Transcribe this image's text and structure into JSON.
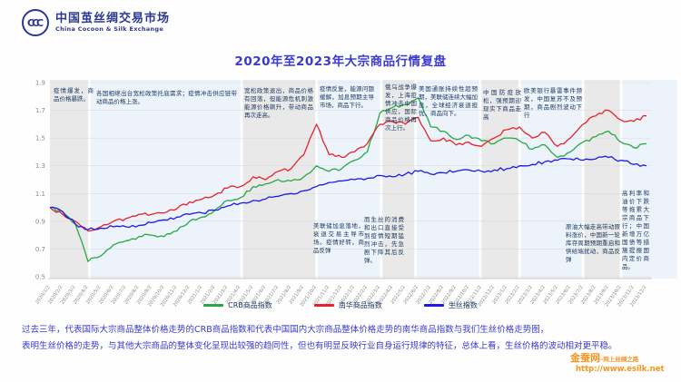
{
  "header": {
    "logo_mark": "CCC",
    "logo_title": "中国茧丝绸交易市场",
    "logo_subtitle": "China  Cocoon & Silk  Exchange"
  },
  "title": "2020年至2023年大宗商品行情复盘",
  "chart_data": {
    "type": "line",
    "title": "2020年至2023年大宗商品行情复盘",
    "ylim": [
      0.5,
      1.9
    ],
    "y_ticks": [
      1.9,
      1.7,
      1.5,
      1.3,
      1.1,
      0.9,
      0.7,
      0.5
    ],
    "grid": true,
    "legend_position": "bottom",
    "x_labels": [
      "2020/1/2",
      "2020/2/2",
      "2020/3/2",
      "2020/4/2",
      "2020/5/2",
      "2020/6/2",
      "2020/7/2",
      "2020/8/2",
      "2020/9/2",
      "2020/10/2",
      "2020/11/2",
      "2020/12/2",
      "2021/1/2",
      "2021/2/2",
      "2021/3/2",
      "2021/4/2",
      "2021/5/2",
      "2021/6/2",
      "2021/7/2",
      "2021/8/2",
      "2021/9/2",
      "2021/10/2",
      "2021/11/2",
      "2021/12/2",
      "2022/1/2",
      "2022/2/2",
      "2022/3/2",
      "2022/4/2",
      "2022/5/2",
      "2022/6/2",
      "2022/7/2",
      "2022/8/2",
      "2022/9/2",
      "2022/10/2",
      "2022/11/2",
      "2022/12/2",
      "2023/1/2",
      "2023/2/2",
      "2023/3/2",
      "2023/4/2",
      "2023/5/2",
      "2023/6/2",
      "2023/7/2",
      "2023/8/2",
      "2023/9/2",
      "2023/10/2",
      "2023/11/2",
      "2023/12/2"
    ],
    "series": [
      {
        "name": "CRB商品指数",
        "color": "#27a844",
        "values": [
          1.0,
          0.97,
          0.88,
          0.61,
          0.65,
          0.73,
          0.76,
          0.79,
          0.8,
          0.79,
          0.83,
          0.9,
          0.93,
          0.98,
          1.05,
          1.07,
          1.15,
          1.17,
          1.2,
          1.19,
          1.22,
          1.3,
          1.26,
          1.28,
          1.34,
          1.4,
          1.68,
          1.72,
          1.74,
          1.79,
          1.58,
          1.55,
          1.49,
          1.52,
          1.48,
          1.46,
          1.5,
          1.48,
          1.42,
          1.45,
          1.36,
          1.4,
          1.47,
          1.51,
          1.55,
          1.47,
          1.43,
          1.46
        ]
      },
      {
        "name": "南华商品指数",
        "color": "#e8222a",
        "values": [
          1.0,
          0.95,
          0.9,
          0.83,
          0.86,
          0.9,
          0.92,
          0.95,
          0.95,
          0.96,
          0.99,
          1.04,
          1.06,
          1.09,
          1.14,
          1.15,
          1.22,
          1.2,
          1.26,
          1.28,
          1.38,
          1.6,
          1.38,
          1.36,
          1.4,
          1.46,
          1.6,
          1.62,
          1.6,
          1.65,
          1.48,
          1.5,
          1.45,
          1.47,
          1.44,
          1.5,
          1.56,
          1.58,
          1.5,
          1.54,
          1.44,
          1.5,
          1.6,
          1.66,
          1.7,
          1.63,
          1.62,
          1.66
        ]
      },
      {
        "name": "生丝指数",
        "color": "#1a1ae8",
        "values": [
          1.0,
          0.97,
          0.88,
          0.84,
          0.85,
          0.86,
          0.86,
          0.87,
          0.89,
          0.91,
          0.93,
          0.95,
          0.96,
          0.98,
          1.01,
          1.03,
          1.05,
          1.06,
          1.08,
          1.1,
          1.12,
          1.15,
          1.18,
          1.19,
          1.2,
          1.21,
          1.23,
          1.22,
          1.24,
          1.26,
          1.24,
          1.25,
          1.26,
          1.27,
          1.26,
          1.27,
          1.28,
          1.3,
          1.31,
          1.33,
          1.34,
          1.35,
          1.34,
          1.35,
          1.36,
          1.34,
          1.31,
          1.3
        ]
      }
    ],
    "band_colors": {
      "gray": "#e9e9e9",
      "blue": "#ecf3fb"
    },
    "bands": [
      {
        "start": 0.0,
        "end": 3.0,
        "shade": "gray"
      },
      {
        "start": 3.2,
        "end": 15.0,
        "shade": "blue"
      },
      {
        "start": 15.2,
        "end": 20.9,
        "shade": "gray"
      },
      {
        "start": 21.1,
        "end": 26.0,
        "shade": "blue"
      },
      {
        "start": 26.2,
        "end": 28.7,
        "shade": "gray"
      },
      {
        "start": 28.9,
        "end": 33.8,
        "shade": "blue"
      },
      {
        "start": 34.0,
        "end": 36.9,
        "shade": "gray"
      },
      {
        "start": 37.1,
        "end": 41.9,
        "shade": "blue"
      },
      {
        "start": 42.1,
        "end": 44.9,
        "shade": "gray"
      },
      {
        "start": 45.1,
        "end": 49.4,
        "shade": "blue"
      }
    ],
    "annotations": [
      {
        "text": "疫情爆发，商品价格暴跌。"
      },
      {
        "text": "各国相继出台宽松政策托底需求；疫情冲击供应链带动商品价格上涨。"
      },
      {
        "text": "宽松政策退出，商品价格有回落，但能源危机刺激能源价格飙升，带动商品再次走高。"
      },
      {
        "text": "疫情反复，能源问题缓解，加息预期主导市场，商品下行。"
      },
      {
        "text": "俄乌战争爆发，上海疫情冲击中国供应，国际商品价格再次上行。"
      },
      {
        "text": "美国通胀持续性超预期，美联储连续大幅加息，全球经济衰退担忧，商品向下。"
      },
      {
        "text": "中国防疫放松，强预期迎现实下商品走高"
      },
      {
        "text": "欧美银行暴雷事件频发，中国复苏不及预期，商品剧烈波动下行"
      },
      {
        "text": "原油大幅走高带动原料涨价，中国新一轮库存周期预期重启和供给端扰动，商品反弹"
      },
      {
        "text": "高利率和油价下跌等拖累大宗商品下行；中国新增万亿国债等措施提振国内定价商品。"
      },
      {
        "text": "美联储加息落地，衰退交易主导市场。疫情好转，商品反弹"
      },
      {
        "text": "而生丝的消费和出口直接受到疫情短期猛烈冲击，先急剧下降其后反弹。"
      }
    ]
  },
  "footer": {
    "paragraph_line1": "过去三年，代表国际大宗商品整体价格走势的CRB商品指数和代表中国国内大宗商品整体价格走势的南华商品指数与我们生丝价格走势图，",
    "paragraph_line2": "表明生丝价格的走势，与其他大宗商品的整体变化呈现出较强的趋同性，但也有明显反映行业自身运行规律的特征，总体上看，生丝价格的波动相对更平稳。",
    "site_name": "金蚕网",
    "site_tagline": "–网上丝绸之路",
    "site_url": "http://www.esilk.net"
  }
}
